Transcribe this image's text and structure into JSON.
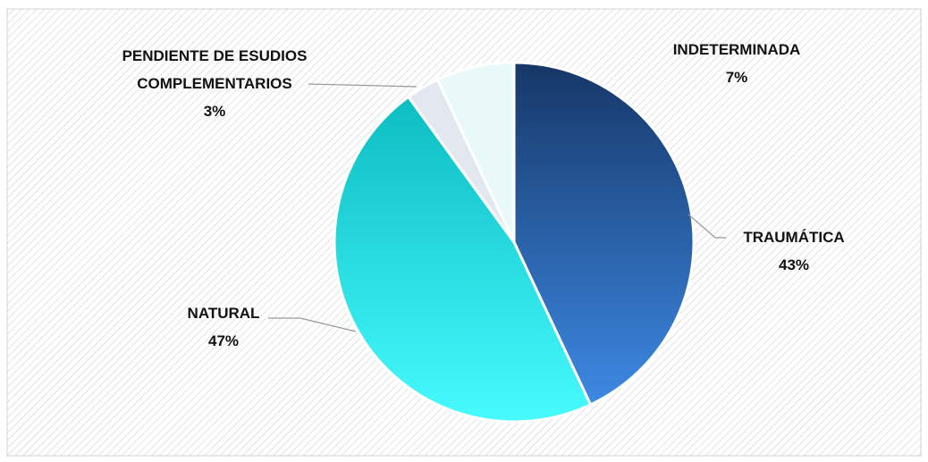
{
  "chart_data": {
    "type": "pie",
    "categories": [
      "TRAUMÁTICA",
      "NATURAL",
      "PENDIENTE DE ESUDIOS COMPLEMENTARIOS",
      "INDETERMINADA"
    ],
    "values": [
      43,
      47,
      3,
      7
    ],
    "value_labels": [
      "43%",
      "47%",
      "3%",
      "7%"
    ],
    "colors": [
      [
        "#163767",
        "#3d89e4"
      ],
      [
        "#0cbdc2",
        "#46fafe"
      ],
      [
        "#e3e7ef",
        "#e3e7ef"
      ],
      [
        "#e9f9f9",
        "#e9f9f9"
      ]
    ]
  }
}
